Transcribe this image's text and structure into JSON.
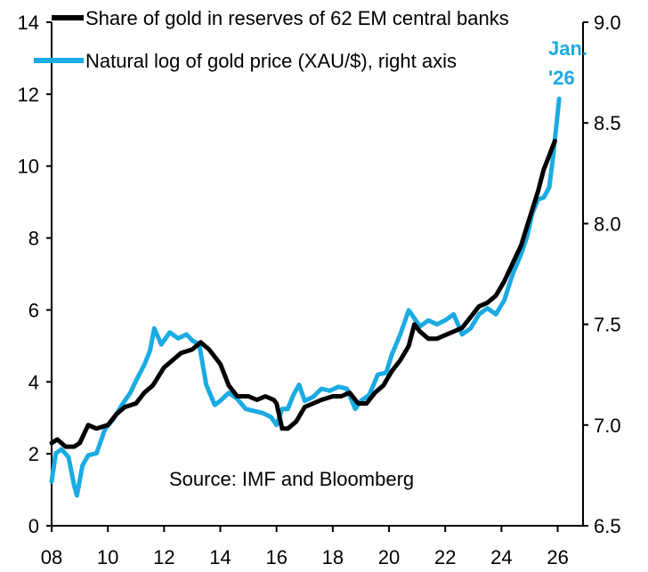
{
  "chart_data": {
    "type": "line",
    "title": "",
    "source": "Source: IMF and Bloomberg",
    "x_ticks": [
      "08",
      "10",
      "12",
      "14",
      "16",
      "18",
      "20",
      "22",
      "24",
      "26"
    ],
    "x_range": [
      2008,
      2026.9
    ],
    "y_left": {
      "range": [
        0,
        14
      ],
      "ticks": [
        "0",
        "2",
        "4",
        "6",
        "8",
        "10",
        "12",
        "14"
      ]
    },
    "y_right": {
      "range": [
        6.5,
        9.0
      ],
      "ticks": [
        "6.5",
        "7.0",
        "7.5",
        "8.0",
        "8.5",
        "9.0"
      ]
    },
    "grid": false,
    "legend_position": "top-left",
    "annotation": {
      "line1": "Jan.",
      "line2": "'26",
      "color": "#1AABE2"
    },
    "series": [
      {
        "name": "Share of gold in reserves of 62 EM central banks",
        "axis": "left",
        "color": "#000000",
        "points": [
          [
            2008.0,
            2.3
          ],
          [
            2008.2,
            2.4
          ],
          [
            2008.5,
            2.2
          ],
          [
            2008.8,
            2.2
          ],
          [
            2009.0,
            2.3
          ],
          [
            2009.3,
            2.8
          ],
          [
            2009.6,
            2.7
          ],
          [
            2010.0,
            2.8
          ],
          [
            2010.3,
            3.1
          ],
          [
            2010.6,
            3.3
          ],
          [
            2011.0,
            3.4
          ],
          [
            2011.3,
            3.7
          ],
          [
            2011.6,
            3.9
          ],
          [
            2012.0,
            4.4
          ],
          [
            2012.3,
            4.6
          ],
          [
            2012.6,
            4.8
          ],
          [
            2013.0,
            4.9
          ],
          [
            2013.3,
            5.1
          ],
          [
            2013.6,
            4.9
          ],
          [
            2014.0,
            4.5
          ],
          [
            2014.3,
            3.9
          ],
          [
            2014.6,
            3.6
          ],
          [
            2015.0,
            3.6
          ],
          [
            2015.3,
            3.5
          ],
          [
            2015.6,
            3.6
          ],
          [
            2015.9,
            3.5
          ],
          [
            2016.0,
            3.4
          ],
          [
            2016.2,
            2.7
          ],
          [
            2016.4,
            2.7
          ],
          [
            2016.7,
            2.9
          ],
          [
            2017.0,
            3.3
          ],
          [
            2017.3,
            3.4
          ],
          [
            2017.6,
            3.5
          ],
          [
            2018.0,
            3.6
          ],
          [
            2018.3,
            3.6
          ],
          [
            2018.6,
            3.7
          ],
          [
            2018.9,
            3.4
          ],
          [
            2019.2,
            3.4
          ],
          [
            2019.5,
            3.7
          ],
          [
            2019.8,
            3.9
          ],
          [
            2020.1,
            4.3
          ],
          [
            2020.4,
            4.6
          ],
          [
            2020.7,
            5.0
          ],
          [
            2020.9,
            5.6
          ],
          [
            2021.1,
            5.4
          ],
          [
            2021.4,
            5.2
          ],
          [
            2021.7,
            5.2
          ],
          [
            2022.0,
            5.3
          ],
          [
            2022.3,
            5.4
          ],
          [
            2022.6,
            5.5
          ],
          [
            2022.9,
            5.8
          ],
          [
            2023.2,
            6.1
          ],
          [
            2023.5,
            6.2
          ],
          [
            2023.8,
            6.4
          ],
          [
            2024.1,
            6.8
          ],
          [
            2024.4,
            7.3
          ],
          [
            2024.7,
            7.8
          ],
          [
            2024.9,
            8.3
          ],
          [
            2025.1,
            8.8
          ],
          [
            2025.3,
            9.3
          ],
          [
            2025.5,
            9.9
          ],
          [
            2025.7,
            10.3
          ],
          [
            2025.9,
            10.7
          ]
        ]
      },
      {
        "name": "Natural log of gold price (XAU/$), right axis",
        "axis": "right",
        "color": "#1AABE2",
        "points": [
          [
            2008.0,
            6.72
          ],
          [
            2008.15,
            6.86
          ],
          [
            2008.35,
            6.88
          ],
          [
            2008.6,
            6.84
          ],
          [
            2008.8,
            6.7
          ],
          [
            2008.9,
            6.65
          ],
          [
            2009.1,
            6.8
          ],
          [
            2009.3,
            6.85
          ],
          [
            2009.6,
            6.86
          ],
          [
            2009.9,
            6.98
          ],
          [
            2010.2,
            7.03
          ],
          [
            2010.5,
            7.1
          ],
          [
            2010.8,
            7.16
          ],
          [
            2011.0,
            7.22
          ],
          [
            2011.3,
            7.3
          ],
          [
            2011.5,
            7.37
          ],
          [
            2011.65,
            7.48
          ],
          [
            2011.9,
            7.4
          ],
          [
            2012.2,
            7.46
          ],
          [
            2012.5,
            7.43
          ],
          [
            2012.8,
            7.45
          ],
          [
            2013.0,
            7.42
          ],
          [
            2013.25,
            7.4
          ],
          [
            2013.5,
            7.2
          ],
          [
            2013.8,
            7.1
          ],
          [
            2014.0,
            7.12
          ],
          [
            2014.3,
            7.16
          ],
          [
            2014.6,
            7.13
          ],
          [
            2014.9,
            7.08
          ],
          [
            2015.2,
            7.07
          ],
          [
            2015.5,
            7.06
          ],
          [
            2015.8,
            7.04
          ],
          [
            2016.0,
            7.0
          ],
          [
            2016.2,
            7.08
          ],
          [
            2016.4,
            7.08
          ],
          [
            2016.6,
            7.15
          ],
          [
            2016.8,
            7.2
          ],
          [
            2017.0,
            7.12
          ],
          [
            2017.3,
            7.14
          ],
          [
            2017.6,
            7.18
          ],
          [
            2017.9,
            7.17
          ],
          [
            2018.2,
            7.19
          ],
          [
            2018.5,
            7.18
          ],
          [
            2018.8,
            7.08
          ],
          [
            2019.0,
            7.12
          ],
          [
            2019.3,
            7.15
          ],
          [
            2019.6,
            7.25
          ],
          [
            2019.9,
            7.26
          ],
          [
            2020.1,
            7.35
          ],
          [
            2020.4,
            7.45
          ],
          [
            2020.7,
            7.57
          ],
          [
            2020.9,
            7.53
          ],
          [
            2021.1,
            7.49
          ],
          [
            2021.4,
            7.52
          ],
          [
            2021.7,
            7.5
          ],
          [
            2022.0,
            7.52
          ],
          [
            2022.3,
            7.55
          ],
          [
            2022.6,
            7.45
          ],
          [
            2022.9,
            7.48
          ],
          [
            2023.2,
            7.55
          ],
          [
            2023.5,
            7.58
          ],
          [
            2023.8,
            7.55
          ],
          [
            2024.1,
            7.62
          ],
          [
            2024.4,
            7.75
          ],
          [
            2024.7,
            7.85
          ],
          [
            2024.9,
            7.93
          ],
          [
            2025.1,
            8.05
          ],
          [
            2025.3,
            8.12
          ],
          [
            2025.5,
            8.13
          ],
          [
            2025.7,
            8.18
          ],
          [
            2025.85,
            8.35
          ],
          [
            2026.05,
            8.62
          ]
        ]
      }
    ]
  }
}
